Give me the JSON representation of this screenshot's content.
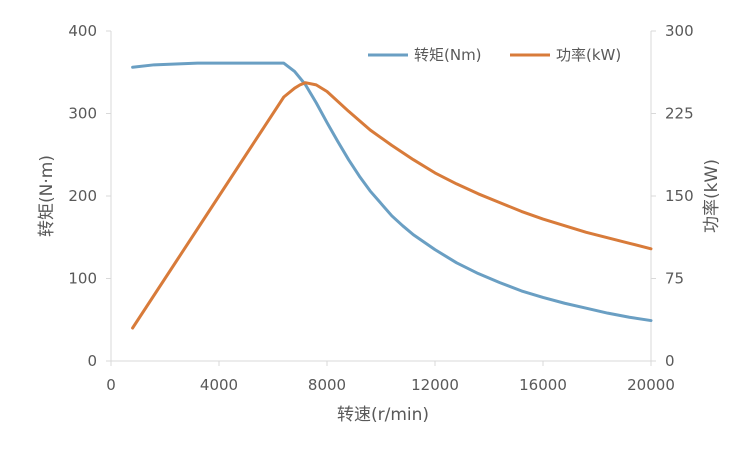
{
  "chart_data": {
    "type": "line",
    "xlabel": "转速(r/min)",
    "ylabel_left": "转矩(N·m)",
    "ylabel_right": "功率(kW)",
    "x_ticks": [
      "0",
      "4000",
      "8000",
      "12000",
      "16000",
      "20000"
    ],
    "y_left_ticks": [
      "0",
      "100",
      "200",
      "300",
      "400"
    ],
    "y_right_ticks": [
      "0",
      "75",
      "150",
      "225",
      "300"
    ],
    "xlim": [
      0,
      20000
    ],
    "ylim_left": [
      0,
      400
    ],
    "ylim_right": [
      0,
      300
    ],
    "grid": false,
    "legend_position": "top-right",
    "series": [
      {
        "name": "转矩(Nm)",
        "axis": "left",
        "color": "#6a9fc3",
        "x": [
          800,
          1600,
          2400,
          3200,
          4000,
          4800,
          5600,
          6400,
          6800,
          7200,
          7600,
          8000,
          8400,
          8800,
          9200,
          9600,
          10000,
          10400,
          10800,
          11200,
          12000,
          12800,
          13600,
          14400,
          15200,
          16000,
          16800,
          17600,
          18400,
          19200,
          20000
        ],
        "y": [
          356,
          359,
          360,
          361,
          361,
          361,
          361,
          361,
          351,
          335,
          313,
          289,
          266,
          244,
          224,
          206,
          191,
          176,
          164,
          153,
          135,
          119,
          106,
          95,
          85,
          77,
          70,
          64,
          58,
          53,
          49
        ]
      },
      {
        "name": "功率(kW)",
        "axis": "right",
        "color": "#d87b3a",
        "x": [
          800,
          1600,
          2400,
          3200,
          4000,
          4800,
          5600,
          6400,
          6800,
          7000,
          7200,
          7600,
          8000,
          8800,
          9600,
          10400,
          11200,
          12000,
          12800,
          13600,
          14400,
          15200,
          16000,
          16800,
          17600,
          18400,
          19200,
          20000
        ],
        "y": [
          30,
          60,
          90,
          120,
          150,
          180,
          210,
          240,
          248,
          251,
          253,
          251,
          245,
          227,
          210,
          196,
          183,
          171,
          161,
          152,
          144,
          136,
          129,
          123,
          117,
          112,
          107,
          102
        ]
      }
    ]
  }
}
